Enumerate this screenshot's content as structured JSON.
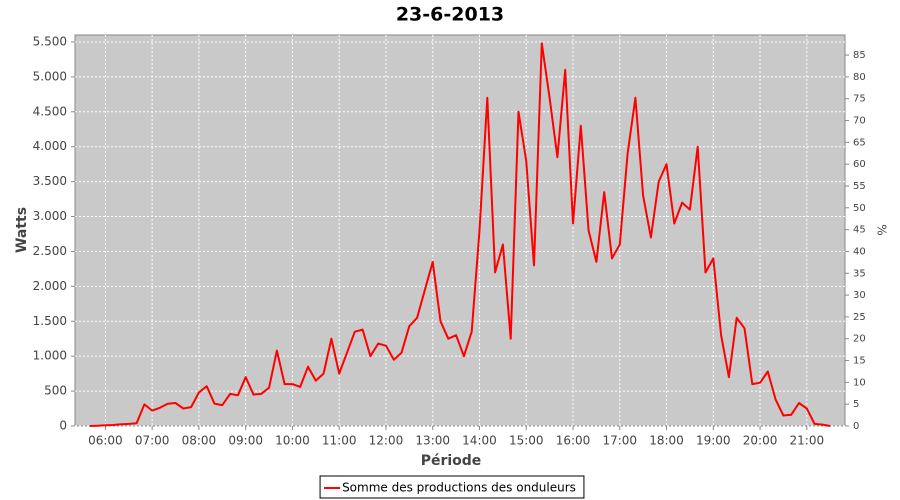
{
  "chart_data": {
    "type": "line",
    "title": "23-6-2013",
    "x_label": "Période",
    "y_label": "Watts",
    "y2_label": "%",
    "x": [
      "05:40",
      "05:50",
      "06:00",
      "06:10",
      "06:20",
      "06:30",
      "06:40",
      "06:50",
      "07:00",
      "07:10",
      "07:20",
      "07:30",
      "07:40",
      "07:50",
      "08:00",
      "08:10",
      "08:20",
      "08:30",
      "08:40",
      "08:50",
      "09:00",
      "09:10",
      "09:20",
      "09:30",
      "09:40",
      "09:50",
      "10:00",
      "10:10",
      "10:20",
      "10:30",
      "10:40",
      "10:50",
      "11:00",
      "11:10",
      "11:20",
      "11:30",
      "11:40",
      "11:50",
      "12:00",
      "12:10",
      "12:20",
      "12:30",
      "12:40",
      "12:50",
      "13:00",
      "13:10",
      "13:20",
      "13:30",
      "13:40",
      "13:50",
      "14:00",
      "14:10",
      "14:20",
      "14:30",
      "14:40",
      "14:50",
      "15:00",
      "15:10",
      "15:20",
      "15:30",
      "15:40",
      "15:50",
      "16:00",
      "16:10",
      "16:20",
      "16:30",
      "16:40",
      "16:50",
      "17:00",
      "17:10",
      "17:20",
      "17:30",
      "17:40",
      "17:50",
      "18:00",
      "18:10",
      "18:20",
      "18:30",
      "18:40",
      "18:50",
      "19:00",
      "19:10",
      "19:20",
      "19:30",
      "19:40",
      "19:50",
      "20:00",
      "20:10",
      "20:20",
      "20:30",
      "20:40",
      "20:50",
      "21:00",
      "21:10",
      "21:20",
      "21:30"
    ],
    "series": [
      {
        "name": "Somme des productions des onduleurs",
        "color": "#ff0000",
        "values": [
          0,
          5,
          10,
          15,
          25,
          30,
          40,
          310,
          220,
          260,
          320,
          330,
          250,
          270,
          480,
          570,
          320,
          300,
          460,
          440,
          700,
          450,
          460,
          550,
          1080,
          600,
          600,
          560,
          850,
          650,
          750,
          1250,
          750,
          1050,
          1350,
          1380,
          1000,
          1180,
          1150,
          950,
          1050,
          1430,
          1550,
          1950,
          2350,
          1500,
          1250,
          1300,
          1000,
          1350,
          2800,
          4700,
          2200,
          2600,
          1250,
          4500,
          3800,
          2300,
          5480,
          4700,
          3850,
          5100,
          2900,
          4300,
          2800,
          2350,
          3350,
          2400,
          2600,
          3900,
          4700,
          3300,
          2700,
          3500,
          3750,
          2900,
          3200,
          3100,
          4000,
          2200,
          2400,
          1300,
          700,
          1550,
          1400,
          600,
          620,
          780,
          380,
          150,
          160,
          330,
          250,
          30,
          20,
          0
        ]
      }
    ],
    "xlim": [
      "05:21",
      "21:49"
    ],
    "xticks": [
      "06:00",
      "07:00",
      "08:00",
      "09:00",
      "10:00",
      "11:00",
      "12:00",
      "13:00",
      "14:00",
      "15:00",
      "16:00",
      "17:00",
      "18:00",
      "19:00",
      "20:00",
      "21:00"
    ],
    "ylim": [
      0,
      5600
    ],
    "yticks": [
      0,
      500,
      {
        "value": 1000,
        "label": "1.000"
      },
      {
        "value": 1500,
        "label": "1.500"
      },
      {
        "value": 2000,
        "label": "2.000"
      },
      {
        "value": 2500,
        "label": "2.500"
      },
      {
        "value": 3000,
        "label": "3.000"
      },
      {
        "value": 3500,
        "label": "3.500"
      },
      {
        "value": 4000,
        "label": "4.000"
      },
      {
        "value": 4500,
        "label": "4.500"
      },
      {
        "value": 5000,
        "label": "5.000"
      },
      {
        "value": 5500,
        "label": "5.500"
      }
    ],
    "y2lim": [
      0,
      89.6
    ],
    "y2ticks": [
      0,
      5,
      10,
      15,
      20,
      25,
      30,
      35,
      40,
      45,
      50,
      55,
      60,
      65,
      70,
      75,
      80,
      85
    ],
    "grid": true,
    "legend": "bottom"
  }
}
